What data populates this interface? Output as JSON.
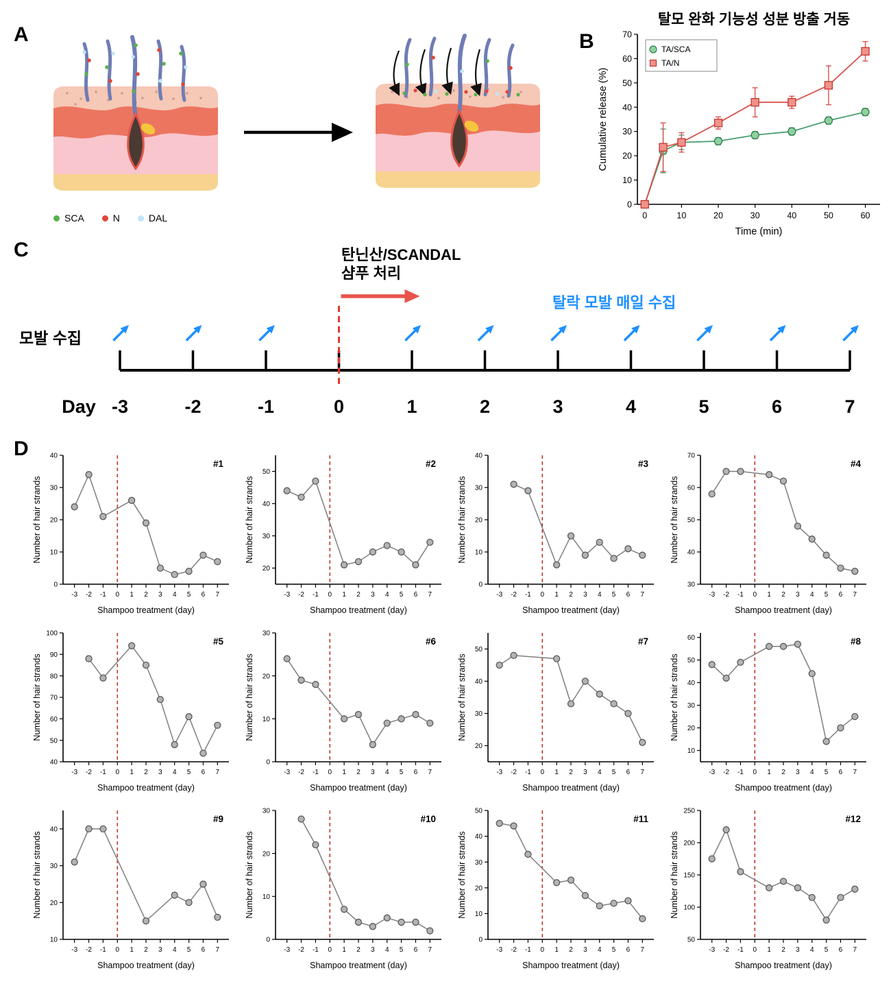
{
  "figure": {
    "panel_labels": {
      "A": "A",
      "B": "B",
      "C": "C",
      "D": "D"
    }
  },
  "panel_a": {
    "legend": [
      {
        "label": "SCA",
        "color": "#55b24c"
      },
      {
        "label": "N",
        "color": "#e0453a"
      },
      {
        "label": "DAL",
        "color": "#bfe6f7"
      }
    ]
  },
  "panel_b": {
    "title": "탈모 완화 기능성 성분 방출 거동"
  },
  "panel_c": {
    "collection_label": "모발 수집",
    "treatment_label_line1": "탄닌산/SCANDAL",
    "treatment_label_line2": "샴푸 처리",
    "daily_collection_label": "탈락 모발 매일 수집",
    "day_caption": "Day",
    "days": [
      "-3",
      "-2",
      "-1",
      "0",
      "1",
      "2",
      "3",
      "4",
      "5",
      "6",
      "7"
    ],
    "accent_red": "#e03a2f",
    "accent_blue": "#1e90ff"
  },
  "chart_data": [
    {
      "id": "B-release",
      "type": "line",
      "title": "탈모 완화 기능성 성분 방출 거동",
      "xlabel": "Time (min)",
      "ylabel": "Cumulative release (%)",
      "xlim": [
        -2,
        64
      ],
      "ylim": [
        0,
        70
      ],
      "xticks": [
        0,
        10,
        20,
        30,
        40,
        50,
        60
      ],
      "yticks": [
        0,
        10,
        20,
        30,
        40,
        50,
        60,
        70
      ],
      "legend_position": "top-left",
      "series": [
        {
          "name": "TA/SCA",
          "marker": "circle",
          "color": "#4a9e6f",
          "fill": "#8fd19e",
          "edge": "#2f7d50",
          "x": [
            0,
            5,
            10,
            20,
            30,
            40,
            50,
            60
          ],
          "y": [
            0,
            22,
            25.5,
            26,
            28.5,
            30,
            34.5,
            38
          ],
          "err": [
            0.5,
            9,
            3,
            1.5,
            1.5,
            1.5,
            1.5,
            1.5
          ]
        },
        {
          "name": "TA/N",
          "marker": "square",
          "color": "#d9534f",
          "fill": "#f2918c",
          "edge": "#c0392b",
          "x": [
            0,
            5,
            10,
            20,
            30,
            40,
            50,
            60
          ],
          "y": [
            0,
            23.5,
            25.5,
            33.5,
            42,
            42,
            49,
            63
          ],
          "err": [
            0.5,
            10,
            4,
            2.5,
            6,
            2.5,
            8,
            4
          ]
        }
      ]
    },
    {
      "id": "#1",
      "type": "line",
      "xlabel": "Shampoo treatment (day)",
      "ylabel": "Number of hair strands",
      "xlim": [
        -3.8,
        7.8
      ],
      "ylim": [
        0,
        40
      ],
      "xticks": [
        -3,
        -2,
        -1,
        0,
        1,
        2,
        3,
        4,
        5,
        6,
        7
      ],
      "yticks": [
        0,
        10,
        20,
        30,
        40
      ],
      "vline": 0,
      "x": [
        -3,
        -2,
        -1,
        1,
        2,
        3,
        4,
        5,
        6,
        7
      ],
      "y": [
        24,
        34,
        21,
        26,
        19,
        5,
        3,
        4,
        9,
        7
      ]
    },
    {
      "id": "#2",
      "type": "line",
      "xlabel": "Shampoo treatment (day)",
      "ylabel": "Number of hair strands",
      "xlim": [
        -3.8,
        7.8
      ],
      "ylim": [
        15,
        55
      ],
      "xticks": [
        -3,
        -2,
        -1,
        0,
        1,
        2,
        3,
        4,
        5,
        6,
        7
      ],
      "yticks": [
        20,
        30,
        40,
        50
      ],
      "vline": 0,
      "x": [
        -3,
        -2,
        -1,
        1,
        2,
        3,
        4,
        5,
        6,
        7
      ],
      "y": [
        44,
        42,
        47,
        21,
        22,
        25,
        27,
        25,
        21,
        28
      ]
    },
    {
      "id": "#3",
      "type": "line",
      "xlabel": "Shampoo treatment (day)",
      "ylabel": "Number of hair strands",
      "xlim": [
        -3.8,
        7.8
      ],
      "ylim": [
        0,
        40
      ],
      "xticks": [
        -3,
        -2,
        -1,
        0,
        1,
        2,
        3,
        4,
        5,
        6,
        7
      ],
      "yticks": [
        0,
        10,
        20,
        30,
        40
      ],
      "vline": 0,
      "x": [
        -2,
        -1,
        1,
        2,
        3,
        4,
        5,
        6,
        7
      ],
      "y": [
        31,
        29,
        6,
        15,
        9,
        13,
        8,
        11,
        9
      ]
    },
    {
      "id": "#4",
      "type": "line",
      "xlabel": "Shampoo treatment (day)",
      "ylabel": "Number of hair strands",
      "xlim": [
        -3.8,
        7.8
      ],
      "ylim": [
        30,
        70
      ],
      "xticks": [
        -3,
        -2,
        -1,
        0,
        1,
        2,
        3,
        4,
        5,
        6,
        7
      ],
      "yticks": [
        30,
        40,
        50,
        60,
        70
      ],
      "vline": 0,
      "x": [
        -3,
        -2,
        -1,
        1,
        2,
        3,
        4,
        5,
        6,
        7
      ],
      "y": [
        58,
        65,
        65,
        64,
        62,
        48,
        44,
        39,
        35,
        34
      ]
    },
    {
      "id": "#5",
      "type": "line",
      "xlabel": "Shampoo treatment (day)",
      "ylabel": "Number of hair strands",
      "xlim": [
        -3.8,
        7.8
      ],
      "ylim": [
        40,
        100
      ],
      "xticks": [
        -3,
        -2,
        -1,
        0,
        1,
        2,
        3,
        4,
        5,
        6,
        7
      ],
      "yticks": [
        40,
        50,
        60,
        70,
        80,
        90,
        100
      ],
      "vline": 0,
      "x": [
        -2,
        -1,
        1,
        2,
        3,
        4,
        5,
        6,
        7
      ],
      "y": [
        88,
        79,
        94,
        85,
        69,
        48,
        61,
        44,
        57
      ]
    },
    {
      "id": "#6",
      "type": "line",
      "xlabel": "Shampoo treatment (day)",
      "ylabel": "Number of hair strands",
      "xlim": [
        -3.8,
        7.8
      ],
      "ylim": [
        0,
        30
      ],
      "xticks": [
        -3,
        -2,
        -1,
        0,
        1,
        2,
        3,
        4,
        5,
        6,
        7
      ],
      "yticks": [
        0,
        10,
        20,
        30
      ],
      "vline": 0,
      "x": [
        -3,
        -2,
        -1,
        1,
        2,
        3,
        4,
        5,
        6,
        7
      ],
      "y": [
        24,
        19,
        18,
        10,
        11,
        4,
        9,
        10,
        11,
        9
      ]
    },
    {
      "id": "#7",
      "type": "line",
      "xlabel": "Shampoo treatment (day)",
      "ylabel": "Number of hair strands",
      "xlim": [
        -3.8,
        7.8
      ],
      "ylim": [
        15,
        55
      ],
      "xticks": [
        -3,
        -2,
        -1,
        0,
        1,
        2,
        3,
        4,
        5,
        6,
        7
      ],
      "yticks": [
        20,
        30,
        40,
        50
      ],
      "vline": 0,
      "x": [
        -3,
        -2,
        1,
        2,
        3,
        4,
        5,
        6,
        7
      ],
      "y": [
        45,
        48,
        47,
        33,
        40,
        36,
        33,
        30,
        21
      ]
    },
    {
      "id": "#8",
      "type": "line",
      "xlabel": "Shampoo treatment (day)",
      "ylabel": "Number of hair strands",
      "xlim": [
        -3.8,
        7.8
      ],
      "ylim": [
        5,
        62
      ],
      "xticks": [
        -3,
        -2,
        -1,
        0,
        1,
        2,
        3,
        4,
        5,
        6,
        7
      ],
      "yticks": [
        10,
        20,
        30,
        40,
        50,
        60
      ],
      "vline": 0,
      "x": [
        -3,
        -2,
        -1,
        1,
        2,
        3,
        4,
        5,
        6,
        7
      ],
      "y": [
        48,
        42,
        49,
        56,
        56,
        57,
        44,
        14,
        20,
        25
      ]
    },
    {
      "id": "#9",
      "type": "line",
      "xlabel": "Shampoo treatment (day)",
      "ylabel": "Number of hair strands",
      "xlim": [
        -3.8,
        7.8
      ],
      "ylim": [
        10,
        45
      ],
      "xticks": [
        -3,
        -2,
        -1,
        0,
        1,
        2,
        3,
        4,
        5,
        6,
        7
      ],
      "yticks": [
        10,
        20,
        30,
        40
      ],
      "vline": 0,
      "x": [
        -3,
        -2,
        -1,
        2,
        4,
        5,
        6,
        7
      ],
      "y": [
        31,
        40,
        40,
        15,
        22,
        20,
        25,
        16
      ]
    },
    {
      "id": "#10",
      "type": "line",
      "xlabel": "Shampoo treatment (day)",
      "ylabel": "Number of hair strands",
      "xlim": [
        -3.8,
        7.8
      ],
      "ylim": [
        0,
        30
      ],
      "xticks": [
        -3,
        -2,
        -1,
        0,
        1,
        2,
        3,
        4,
        5,
        6,
        7
      ],
      "yticks": [
        0,
        10,
        20,
        30
      ],
      "vline": 0,
      "x": [
        -2,
        -1,
        1,
        2,
        3,
        4,
        5,
        6,
        7
      ],
      "y": [
        28,
        22,
        7,
        4,
        3,
        5,
        4,
        4,
        2
      ]
    },
    {
      "id": "#11",
      "type": "line",
      "xlabel": "Shampoo treatment (day)",
      "ylabel": "Number of hair strands",
      "xlim": [
        -3.8,
        7.8
      ],
      "ylim": [
        0,
        50
      ],
      "xticks": [
        -3,
        -2,
        -1,
        0,
        1,
        2,
        3,
        4,
        5,
        6,
        7
      ],
      "yticks": [
        0,
        10,
        20,
        30,
        40,
        50
      ],
      "vline": 0,
      "x": [
        -3,
        -2,
        -1,
        1,
        2,
        3,
        4,
        5,
        6,
        7
      ],
      "y": [
        45,
        44,
        33,
        22,
        23,
        17,
        13,
        14,
        15,
        8
      ]
    },
    {
      "id": "#12",
      "type": "line",
      "xlabel": "Shampoo treatment (day)",
      "ylabel": "Number of hair strands",
      "xlim": [
        -3.8,
        7.8
      ],
      "ylim": [
        50,
        250
      ],
      "xticks": [
        -3,
        -2,
        -1,
        0,
        1,
        2,
        3,
        4,
        5,
        6,
        7
      ],
      "yticks": [
        50,
        100,
        150,
        200,
        250
      ],
      "vline": 0,
      "x": [
        -3,
        -2,
        -1,
        1,
        2,
        3,
        4,
        5,
        6,
        7
      ],
      "y": [
        175,
        220,
        155,
        130,
        140,
        130,
        115,
        80,
        115,
        128
      ]
    }
  ]
}
